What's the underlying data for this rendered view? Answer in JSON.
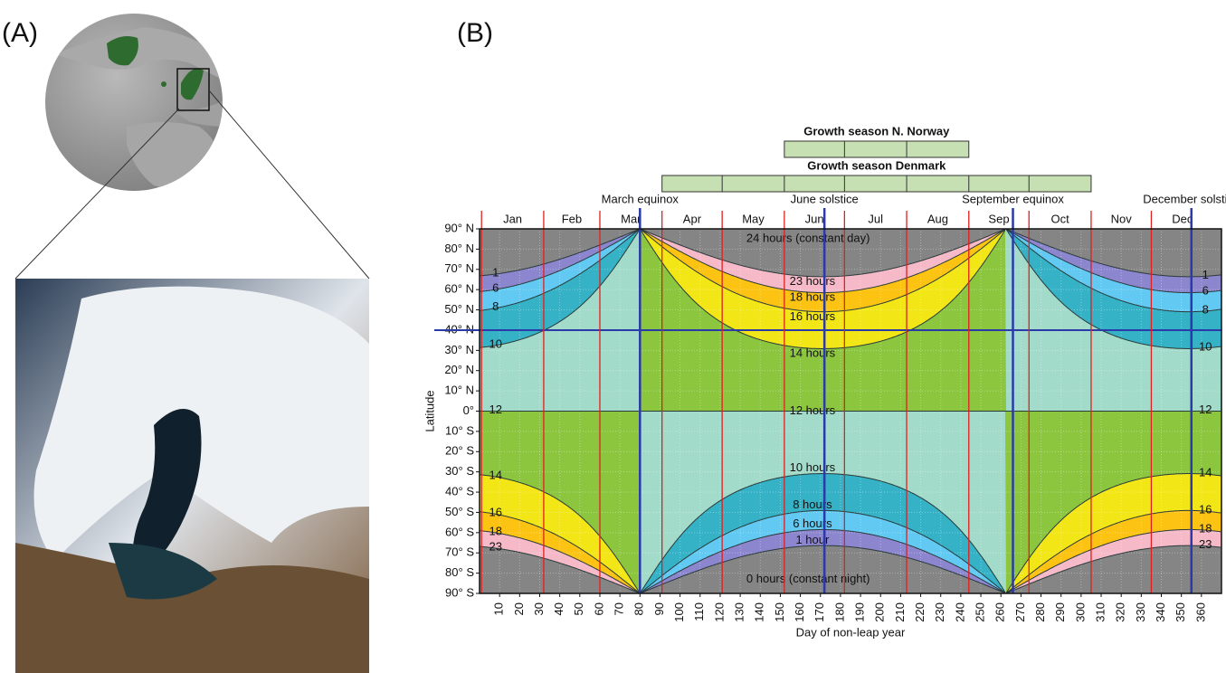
{
  "panels": [
    {
      "label": "(A)"
    },
    {
      "label": "(B)"
    }
  ],
  "chart": {
    "type": "daylength",
    "seasons": [
      {
        "label": "Growth season N. Norway",
        "start": 152,
        "end": 244
      },
      {
        "label": "Growth season Denmark",
        "start": 91,
        "end": 305
      }
    ],
    "events": [
      {
        "label": "March equinox",
        "day": 80
      },
      {
        "label": "June solstice",
        "day": 172
      },
      {
        "label": "September equinox",
        "day": 266
      },
      {
        "label": "December solstice",
        "day": 355
      }
    ],
    "months": [
      {
        "label": "Jan",
        "start": 1
      },
      {
        "label": "Feb",
        "start": 32
      },
      {
        "label": "Mar",
        "start": 60
      },
      {
        "label": "Apr",
        "start": 91
      },
      {
        "label": "May",
        "start": 121
      },
      {
        "label": "Jun",
        "start": 152
      },
      {
        "label": "Jul",
        "start": 182
      },
      {
        "label": "Aug",
        "start": 213
      },
      {
        "label": "Sep",
        "start": 244
      },
      {
        "label": "Oct",
        "start": 274
      },
      {
        "label": "Nov",
        "start": 305
      },
      {
        "label": "Dec",
        "start": 335
      }
    ],
    "xlabel": "Day of non-leap year",
    "ylabel": "Latitude",
    "xlim": [
      0,
      370
    ],
    "xticks": [
      10,
      20,
      30,
      40,
      50,
      60,
      70,
      80,
      90,
      100,
      110,
      120,
      130,
      140,
      150,
      160,
      170,
      180,
      190,
      200,
      210,
      220,
      230,
      240,
      250,
      260,
      270,
      280,
      290,
      300,
      310,
      320,
      330,
      340,
      350,
      360
    ],
    "ylim": [
      -90,
      90
    ],
    "yticks": [
      {
        "value": 90,
        "label": "90° N"
      },
      {
        "value": 80,
        "label": "80° N"
      },
      {
        "value": 70,
        "label": "70° N"
      },
      {
        "value": 60,
        "label": "60° N"
      },
      {
        "value": 50,
        "label": "50° N"
      },
      {
        "value": 40,
        "label": "40° N"
      },
      {
        "value": 30,
        "label": "30° N"
      },
      {
        "value": 20,
        "label": "20° N"
      },
      {
        "value": 10,
        "label": "10° N"
      },
      {
        "value": 0,
        "label": "0°"
      },
      {
        "value": -10,
        "label": "10° S"
      },
      {
        "value": -20,
        "label": "20° S"
      },
      {
        "value": -30,
        "label": "30° S"
      },
      {
        "value": -40,
        "label": "40° S"
      },
      {
        "value": -50,
        "label": "50° S"
      },
      {
        "value": -60,
        "label": "60° S"
      },
      {
        "value": -70,
        "label": "70° S"
      },
      {
        "value": -80,
        "label": "80° S"
      },
      {
        "value": -90,
        "label": "90° S"
      }
    ],
    "highlight_latitude": 40,
    "highlight_color": "#2a3aa8",
    "base_color": "#858585",
    "bands": [
      {
        "hours": 1,
        "color": "#8c86cf",
        "label": "1 hour"
      },
      {
        "hours": 6,
        "color": "#62c9f2",
        "label": "6 hours"
      },
      {
        "hours": 8,
        "color": "#35b2c6",
        "label": "8 hours"
      },
      {
        "hours": 10,
        "color": "#a2dbc9",
        "label": "10 hours"
      },
      {
        "hours": 12,
        "color": "#8cc63f",
        "label": "12 hours"
      },
      {
        "hours": 14,
        "color": "#f3e616",
        "label": "14 hours"
      },
      {
        "hours": 16,
        "color": "#fcc312",
        "label": "16 hours"
      },
      {
        "hours": 18,
        "color": "#f6b9c8",
        "label": "18 hours"
      },
      {
        "hours": 23,
        "color": "#858585",
        "label": "23 hours"
      }
    ],
    "constant_day_label": "24 hours (constant day)",
    "constant_night_label": "0 hours (constant night)"
  }
}
